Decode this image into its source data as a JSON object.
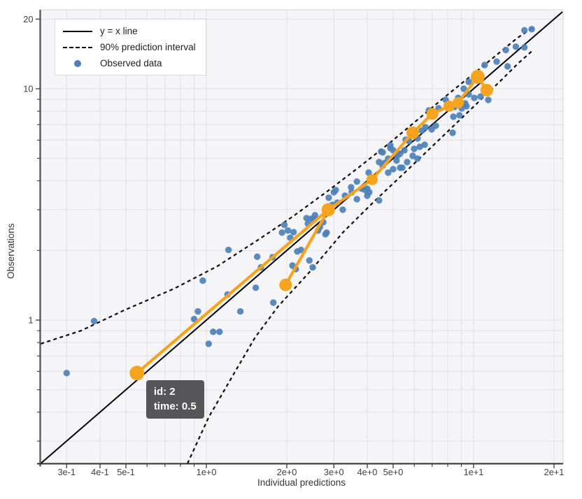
{
  "chart_data": {
    "type": "scatter",
    "title": "",
    "xlabel": "Individual predictions",
    "ylabel": "Observations",
    "x_scale": "log",
    "y_scale": "log",
    "x_range": [
      0.238,
      21.55
    ],
    "y_range": [
      0.239,
      21.9
    ],
    "grid": true,
    "legend_position": "top-left",
    "legend": [
      {
        "label": "y = x line",
        "marker": "solid-line"
      },
      {
        "label": "90% prediction interval",
        "marker": "dashed-line"
      },
      {
        "label": "Observed data",
        "marker": "dot"
      }
    ],
    "x_ticks": [
      {
        "v": 0.3,
        "label": "3e-1"
      },
      {
        "v": 0.4,
        "label": "4e-1"
      },
      {
        "v": 0.5,
        "label": "5e-1"
      },
      {
        "v": 1,
        "label": "1e+0"
      },
      {
        "v": 2,
        "label": "2e+0"
      },
      {
        "v": 3,
        "label": "3e+0"
      },
      {
        "v": 4,
        "label": "4e+0"
      },
      {
        "v": 5,
        "label": "5e+0"
      },
      {
        "v": 10,
        "label": "1e+1"
      },
      {
        "v": 20,
        "label": "2e+1"
      }
    ],
    "x_minor": [
      0.6,
      0.7,
      0.8,
      0.9,
      6,
      7,
      8,
      9
    ],
    "y_ticks": [
      {
        "v": 1,
        "label": "1"
      },
      {
        "v": 10,
        "label": "10"
      },
      {
        "v": 20,
        "label": "20"
      }
    ],
    "y_minor": [
      0.3,
      0.4,
      0.5,
      0.6,
      0.7,
      0.8,
      0.9,
      2,
      3,
      4,
      5,
      6,
      7,
      8,
      9
    ],
    "x_grid": [
      0.3,
      0.4,
      0.5,
      0.6,
      0.7,
      0.8,
      0.9,
      1,
      2,
      3,
      4,
      5,
      6,
      7,
      8,
      9,
      10,
      20
    ],
    "y_grid": [
      0.3,
      0.4,
      0.5,
      0.6,
      0.7,
      0.8,
      0.9,
      1,
      2,
      3,
      4,
      5,
      6,
      7,
      8,
      9,
      10,
      20
    ],
    "series": {
      "identity": [
        [
          0.24,
          0.24
        ],
        [
          21.5,
          21.5
        ]
      ],
      "pi_upper": [
        [
          0.24,
          0.79
        ],
        [
          0.34,
          0.9
        ],
        [
          0.49,
          1.1
        ],
        [
          0.76,
          1.37
        ],
        [
          1.1,
          1.71
        ],
        [
          1.57,
          2.23
        ],
        [
          2.12,
          2.82
        ],
        [
          2.87,
          3.64
        ],
        [
          3.76,
          4.62
        ],
        [
          4.93,
          5.92
        ],
        [
          6.29,
          7.48
        ],
        [
          7.9,
          9.32
        ],
        [
          9.9,
          11.5
        ],
        [
          12.2,
          14.0
        ],
        [
          14.6,
          16.6
        ],
        [
          16.6,
          18.3
        ]
      ],
      "pi_lower": [
        [
          0.85,
          0.24
        ],
        [
          1.02,
          0.38
        ],
        [
          1.25,
          0.57
        ],
        [
          1.52,
          0.84
        ],
        [
          1.86,
          1.15
        ],
        [
          2.43,
          1.61
        ],
        [
          3.24,
          2.39
        ],
        [
          4.25,
          3.26
        ],
        [
          5.56,
          4.37
        ],
        [
          7.3,
          5.9
        ],
        [
          9.72,
          8.11
        ],
        [
          12.8,
          11.0
        ],
        [
          14.6,
          12.8
        ],
        [
          16.7,
          14.7
        ]
      ],
      "observed": [
        [
          0.3,
          0.59
        ],
        [
          0.38,
          0.99
        ],
        [
          0.9,
          1.01
        ],
        [
          0.93,
          1.09
        ],
        [
          0.97,
          1.48
        ],
        [
          1.02,
          0.79
        ],
        [
          1.06,
          0.89
        ],
        [
          1.12,
          0.89
        ],
        [
          1.2,
          1.29
        ],
        [
          1.34,
          1.09
        ],
        [
          1.53,
          1.38
        ],
        [
          1.78,
          1.19
        ],
        [
          1.21,
          2.01
        ],
        [
          1.55,
          1.88
        ],
        [
          1.6,
          1.69
        ],
        [
          1.77,
          1.87
        ],
        [
          1.92,
          2.39
        ],
        [
          1.96,
          2.58
        ],
        [
          2.02,
          2.44
        ],
        [
          2.06,
          2.27
        ],
        [
          2.1,
          1.72
        ],
        [
          2.12,
          2.4
        ],
        [
          2.16,
          1.66
        ],
        [
          2.19,
          1.98
        ],
        [
          2.26,
          2.01
        ],
        [
          2.37,
          2.76
        ],
        [
          2.4,
          2.61
        ],
        [
          2.43,
          1.81
        ],
        [
          2.47,
          2.74
        ],
        [
          2.5,
          1.69
        ],
        [
          2.52,
          2.74
        ],
        [
          2.55,
          2.84
        ],
        [
          2.62,
          2.44
        ],
        [
          2.66,
          2.52
        ],
        [
          2.74,
          2.65
        ],
        [
          2.79,
          2.35
        ],
        [
          2.82,
          2.39
        ],
        [
          2.87,
          3.38
        ],
        [
          2.96,
          3.15
        ],
        [
          3.0,
          3.57
        ],
        [
          3.05,
          3.65
        ],
        [
          3.09,
          3.22
        ],
        [
          3.24,
          3.0
        ],
        [
          3.3,
          3.45
        ],
        [
          3.48,
          3.75
        ],
        [
          3.5,
          3.57
        ],
        [
          3.66,
          3.97
        ],
        [
          3.66,
          3.33
        ],
        [
          3.81,
          3.7
        ],
        [
          3.93,
          3.65
        ],
        [
          4.0,
          3.7
        ],
        [
          4.0,
          3.45
        ],
        [
          4.05,
          4.34
        ],
        [
          4.07,
          3.57
        ],
        [
          4.25,
          4.02
        ],
        [
          4.43,
          4.82
        ],
        [
          4.43,
          3.29
        ],
        [
          4.51,
          5.35
        ],
        [
          4.57,
          5.31
        ],
        [
          4.57,
          4.65
        ],
        [
          4.65,
          4.78
        ],
        [
          4.79,
          4.34
        ],
        [
          4.79,
          4.99
        ],
        [
          4.88,
          5.54
        ],
        [
          4.88,
          5.69
        ],
        [
          5.0,
          5.42
        ],
        [
          5.0,
          4.49
        ],
        [
          5.15,
          4.89
        ],
        [
          5.18,
          5.13
        ],
        [
          5.31,
          4.56
        ],
        [
          5.31,
          5.24
        ],
        [
          5.41,
          4.56
        ],
        [
          5.51,
          5.42
        ],
        [
          5.57,
          6.02
        ],
        [
          5.64,
          4.82
        ],
        [
          5.74,
          5.94
        ],
        [
          5.92,
          5.13
        ],
        [
          5.99,
          5.5
        ],
        [
          6.17,
          6.1
        ],
        [
          6.17,
          4.99
        ],
        [
          6.29,
          5.61
        ],
        [
          6.4,
          6.59
        ],
        [
          6.56,
          5.73
        ],
        [
          6.6,
          6.82
        ],
        [
          6.8,
          8.06
        ],
        [
          6.97,
          6.68
        ],
        [
          7.22,
          6.92
        ],
        [
          7.4,
          8.23
        ],
        [
          7.86,
          8.95
        ],
        [
          8.35,
          6.45
        ],
        [
          8.4,
          7.57
        ],
        [
          8.5,
          8.35
        ],
        [
          8.76,
          9.13
        ],
        [
          8.86,
          7.68
        ],
        [
          9.03,
          8.23
        ],
        [
          9.19,
          10.0
        ],
        [
          9.3,
          8.64
        ],
        [
          9.41,
          8.41
        ],
        [
          9.59,
          9.46
        ],
        [
          9.59,
          10.72
        ],
        [
          10.06,
          9.13
        ],
        [
          10.62,
          9.26
        ],
        [
          11.0,
          12.67
        ],
        [
          11.35,
          8.95
        ],
        [
          12.2,
          13.1
        ],
        [
          13.2,
          14.7
        ],
        [
          13.4,
          12.5
        ],
        [
          14.4,
          15.2
        ],
        [
          15.5,
          17.9
        ],
        [
          15.5,
          15.1
        ],
        [
          16.5,
          18.1
        ]
      ]
    },
    "trajectory": {
      "id": "2",
      "path": [
        [
          0.55,
          0.59
        ],
        [
          2.86,
          3.0
        ],
        [
          4.17,
          4.05
        ],
        [
          5.92,
          6.45
        ],
        [
          7.01,
          7.79
        ],
        [
          8.1,
          8.41
        ],
        [
          8.76,
          8.7
        ],
        [
          10.37,
          11.26
        ],
        [
          11.21,
          9.86
        ]
      ],
      "tail": [
        [
          2.86,
          3.0
        ],
        [
          1.98,
          1.42
        ]
      ],
      "markers": [
        [
          0.55,
          0.59,
          10.5
        ],
        [
          1.98,
          1.42,
          9
        ],
        [
          2.86,
          3.0,
          9.5
        ],
        [
          4.17,
          4.05,
          8
        ],
        [
          5.92,
          6.45,
          9
        ],
        [
          7.01,
          7.79,
          8.5
        ],
        [
          8.1,
          8.41,
          8
        ],
        [
          8.76,
          8.7,
          8
        ],
        [
          10.37,
          11.26,
          10
        ],
        [
          11.21,
          9.86,
          9
        ]
      ]
    },
    "tooltip": {
      "line1": "id: 2",
      "line2": "time: 0.5"
    },
    "colors": {
      "accent": "#F6A41E",
      "point": "#4D80B8",
      "line": "#000000",
      "plot_bg": "#f5f5f8",
      "grid": "#e1e1e8",
      "tick_text": "#3f4147",
      "tooltip_bg": "#4d4d4f"
    }
  }
}
